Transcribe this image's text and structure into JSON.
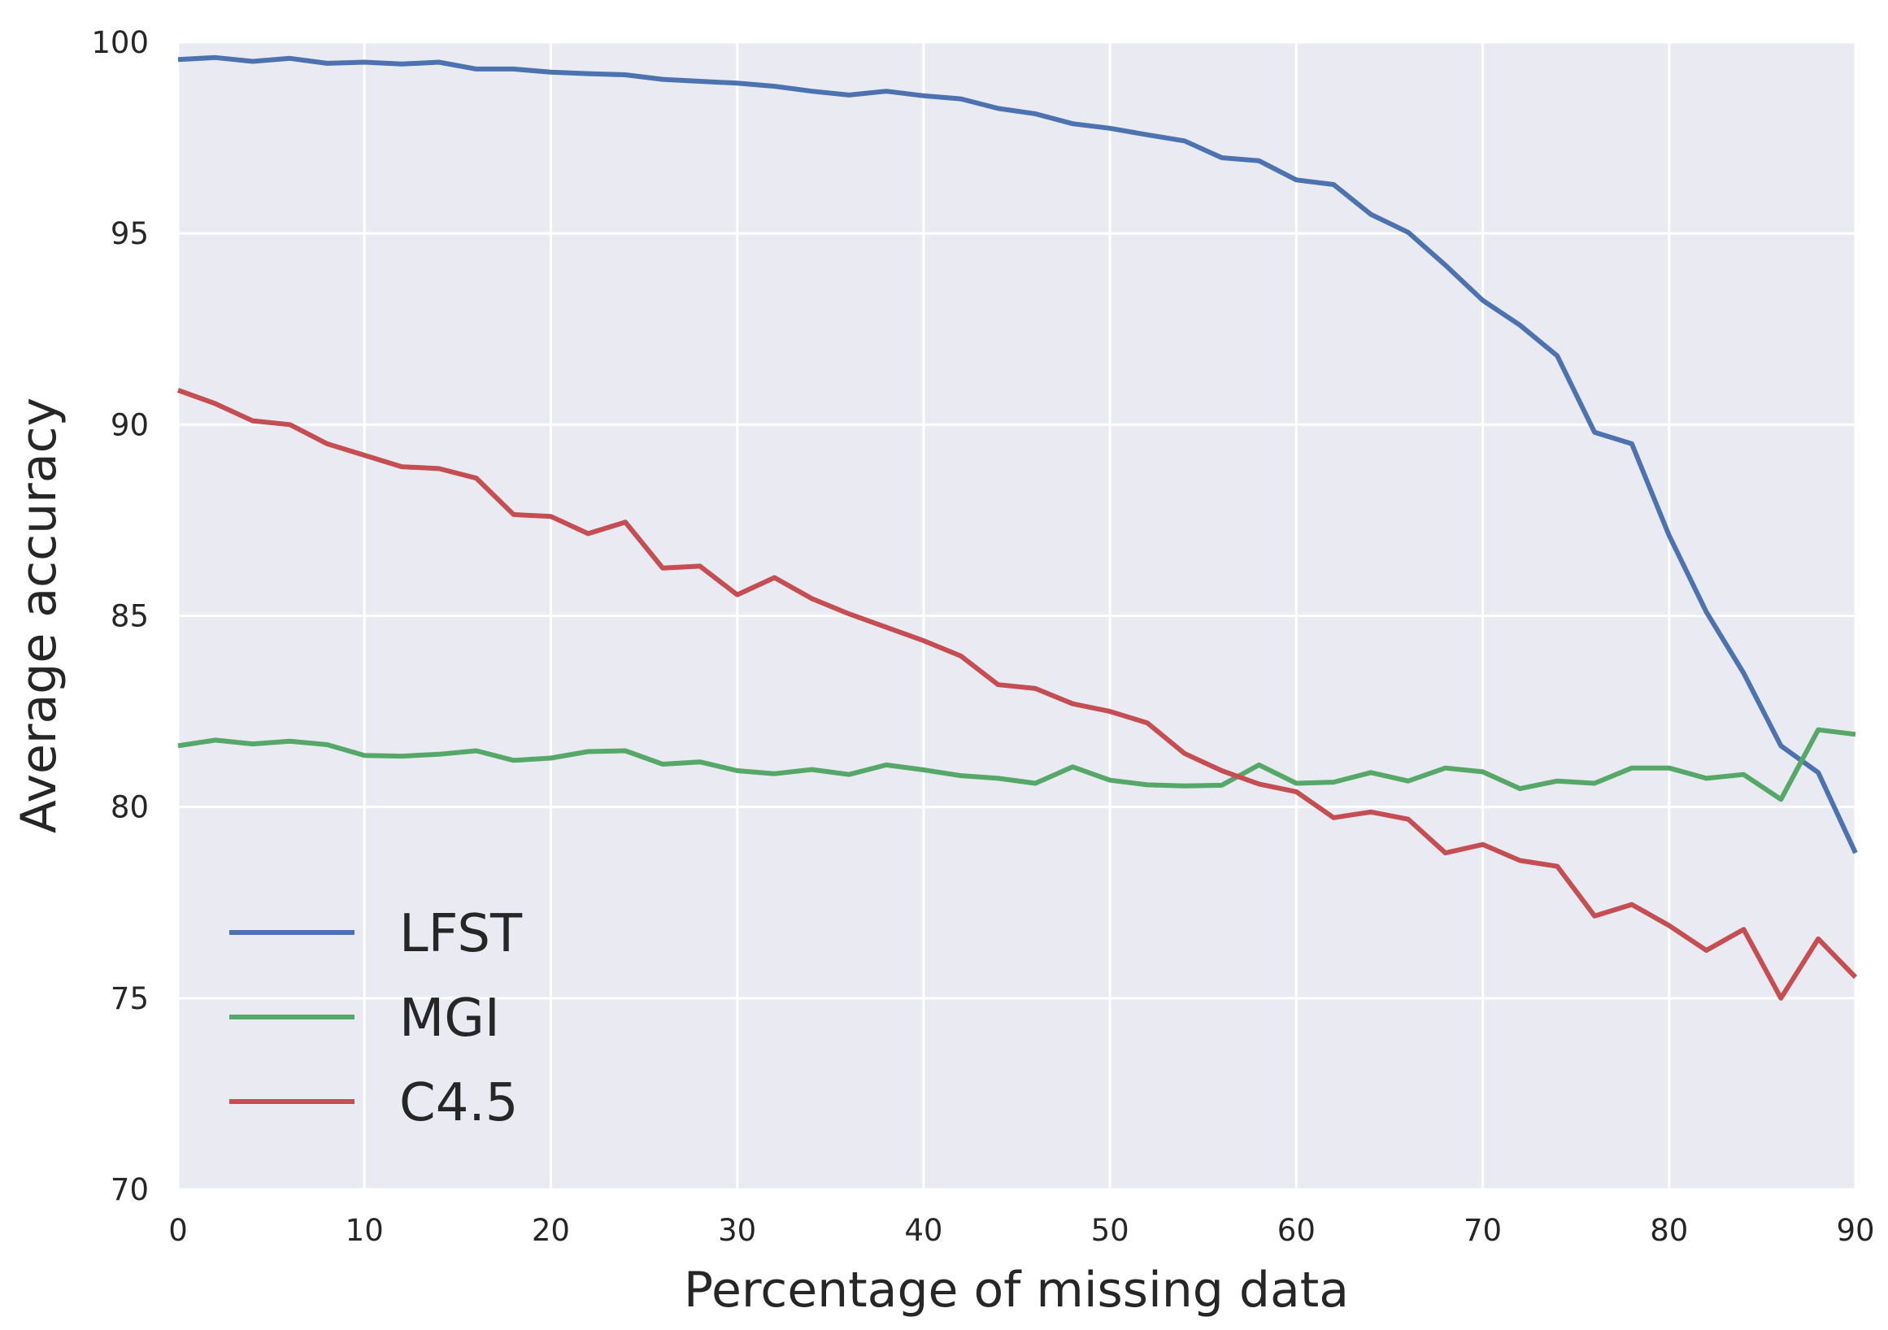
{
  "chart_data": {
    "type": "line",
    "title": "",
    "xlabel": "Percentage of missing data",
    "ylabel": "Average accuracy",
    "xlim": [
      0,
      90
    ],
    "ylim": [
      70,
      100
    ],
    "xticks": [
      "0",
      "10",
      "20",
      "30",
      "40",
      "50",
      "60",
      "70",
      "80",
      "90"
    ],
    "yticks": [
      "70",
      "75",
      "80",
      "85",
      "90",
      "95",
      "100"
    ],
    "grid": true,
    "legend_position": "lower-left",
    "x": [
      0,
      2,
      4,
      6,
      8,
      10,
      12,
      14,
      16,
      18,
      20,
      22,
      24,
      26,
      28,
      30,
      32,
      34,
      36,
      38,
      40,
      42,
      44,
      46,
      48,
      50,
      52,
      54,
      56,
      58,
      60,
      62,
      64,
      66,
      68,
      70,
      72,
      74,
      76,
      78,
      80,
      82,
      84,
      86,
      88,
      90
    ],
    "series": [
      {
        "name": "LFST",
        "color": "#4c72b0",
        "values": [
          99.55,
          99.6,
          99.5,
          99.58,
          99.45,
          99.48,
          99.43,
          99.48,
          99.3,
          99.3,
          99.22,
          99.18,
          99.15,
          99.03,
          98.98,
          98.93,
          98.85,
          98.72,
          98.62,
          98.72,
          98.6,
          98.52,
          98.27,
          98.13,
          97.87,
          97.75,
          97.58,
          97.42,
          96.98,
          96.9,
          96.4,
          96.28,
          95.5,
          95.03,
          94.17,
          93.25,
          92.6,
          91.8,
          89.8,
          89.5,
          87.1,
          85.1,
          83.5,
          81.6,
          80.9,
          78.8
        ]
      },
      {
        "name": "MGI",
        "color": "#55a868",
        "values": [
          81.6,
          81.75,
          81.65,
          81.72,
          81.63,
          81.35,
          81.33,
          81.38,
          81.47,
          81.22,
          81.28,
          81.45,
          81.47,
          81.12,
          81.18,
          80.95,
          80.87,
          80.98,
          80.85,
          81.1,
          80.97,
          80.82,
          80.75,
          80.62,
          81.05,
          80.7,
          80.58,
          80.55,
          80.57,
          81.1,
          80.62,
          80.65,
          80.9,
          80.68,
          81.02,
          80.92,
          80.48,
          80.68,
          80.62,
          81.02,
          81.02,
          80.75,
          80.85,
          80.2,
          82.02,
          81.9
        ]
      },
      {
        "name": "C4.5",
        "color": "#c44e52",
        "values": [
          90.9,
          90.55,
          90.1,
          90.0,
          89.5,
          89.2,
          88.9,
          88.85,
          88.6,
          87.65,
          87.6,
          87.15,
          87.45,
          86.25,
          86.3,
          85.55,
          86.0,
          85.45,
          85.05,
          84.7,
          84.35,
          83.95,
          83.2,
          83.1,
          82.7,
          82.5,
          82.2,
          81.4,
          80.95,
          80.6,
          80.4,
          79.72,
          79.87,
          79.68,
          78.8,
          79.02,
          78.6,
          78.45,
          77.15,
          77.45,
          76.9,
          76.25,
          76.8,
          75.0,
          76.55,
          75.55
        ]
      }
    ]
  }
}
